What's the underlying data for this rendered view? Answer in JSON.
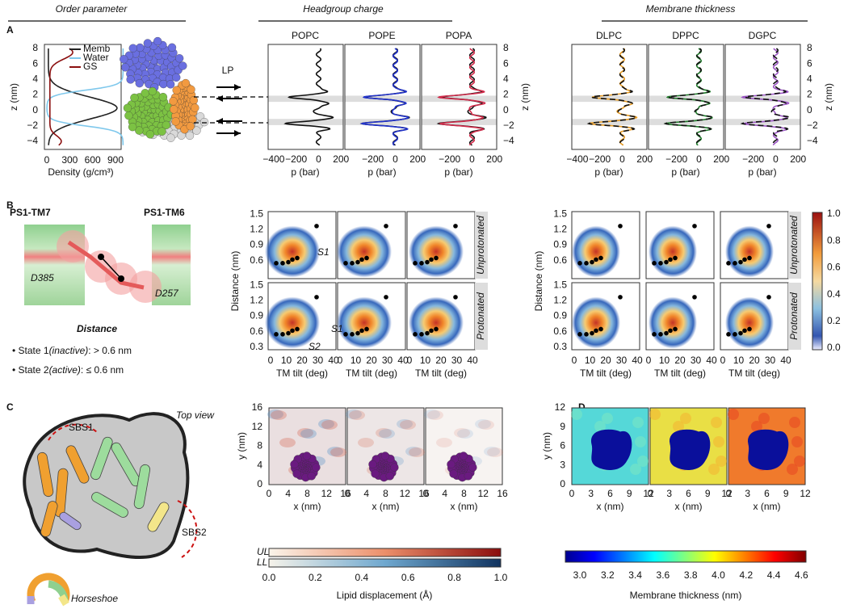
{
  "headers": [
    "Order parameter",
    "Headgroup charge",
    "Membrane thickness"
  ],
  "panel_labels": [
    "A",
    "B",
    "C",
    "D"
  ],
  "panel_a": {
    "legend": [
      "Memb",
      "Water",
      "GS"
    ],
    "z_ticks": [
      "8",
      "6",
      "4",
      "2",
      "0",
      "−2",
      "−4"
    ],
    "z_label": "z (nm)",
    "density_ticks": [
      "0",
      "300",
      "600",
      "900"
    ],
    "density_label": "Density (g/cm³)",
    "lp": "LP",
    "groups": [
      [
        "POPC",
        "POPE",
        "POPA"
      ],
      [
        "DLPC",
        "DPPC",
        "DGPC"
      ]
    ],
    "p_ticks_first": [
      "−400",
      "−200",
      "0",
      "200"
    ],
    "p_ticks": [
      "−200",
      "0",
      "200"
    ],
    "p_label": "p (bar)"
  },
  "panel_b": {
    "tm7": "PS1-TM7",
    "tm6": "PS1-TM6",
    "d385": "D385",
    "d257": "D257",
    "distance": "Distance",
    "states": [
      {
        "label": "• State 1",
        "kind": "(inactive)",
        "criterion": ": > 0.6 nm"
      },
      {
        "label": "• State 2",
        "kind": "(active)",
        "criterion": ": ≤ 0.6 nm"
      }
    ],
    "yticks_top": [
      "1.5",
      "1.2",
      "0.9",
      "0.6"
    ],
    "yticks_bottom": [
      "1.5",
      "1.2",
      "0.9",
      "0.6",
      "0.3"
    ],
    "xticks": [
      "0",
      "10",
      "20",
      "30",
      "40"
    ],
    "ylabel": "Distance (nm)",
    "xlabel": "TM tilt (deg)",
    "rows": [
      "Unprotonated",
      "Protonated"
    ],
    "sites": [
      "S1",
      "S1",
      "S2"
    ],
    "colorbar_ticks": [
      "1.0",
      "0.8",
      "0.6",
      "0.4",
      "0.2",
      "0.0"
    ]
  },
  "panel_c": {
    "sbs1": "SBS1",
    "top_view": "Top view",
    "sbs2": "SBS2",
    "horseshoe": "Horseshoe",
    "yticks": [
      "16",
      "12",
      "8",
      "4",
      "0"
    ],
    "xticks": [
      "0",
      "4",
      "8",
      "12",
      "16"
    ],
    "ylabel": "y (nm)",
    "xlabel": "x (nm)",
    "leaflets": [
      "UL",
      "LL"
    ],
    "colorbar_ticks": [
      "0.0",
      "0.2",
      "0.4",
      "0.6",
      "0.8",
      "1.0"
    ],
    "colorbar_label": "Lipid displacement (Å)"
  },
  "panel_d": {
    "yticks": [
      "12",
      "9",
      "6",
      "3",
      "0"
    ],
    "xticks": [
      "0",
      "3",
      "6",
      "9",
      "12"
    ],
    "ylabel": "y (nm)",
    "xlabel": "x (nm)",
    "colorbar_ticks": [
      "3.0",
      "3.2",
      "3.4",
      "3.6",
      "3.8",
      "4.0",
      "4.2",
      "4.4",
      "4.6"
    ],
    "colorbar_label": "Membrane thickness (nm)"
  }
}
